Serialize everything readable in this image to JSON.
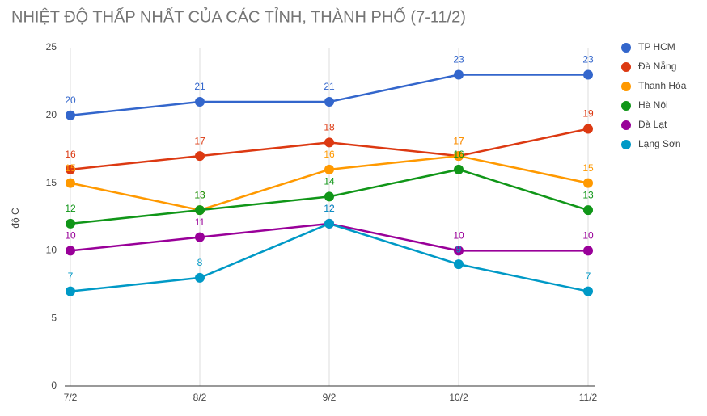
{
  "chart_data": {
    "type": "line",
    "title": "NHIỆT ĐỘ THẤP NHẤT CỦA CÁC TỈNH, THÀNH PHỐ (7-11/2)",
    "ylabel": "độ C",
    "categories": [
      "7/2",
      "8/2",
      "9/2",
      "10/2",
      "11/2"
    ],
    "series": [
      {
        "name": "TP HCM",
        "color": "#3366cc",
        "values": [
          20,
          21,
          21,
          23,
          23
        ]
      },
      {
        "name": "Đà Nẵng",
        "color": "#dc3912",
        "values": [
          16,
          17,
          18,
          17,
          19
        ]
      },
      {
        "name": "Thanh Hóa",
        "color": "#ff9900",
        "values": [
          15,
          13,
          16,
          17,
          15
        ]
      },
      {
        "name": "Hà Nội",
        "color": "#109618",
        "values": [
          12,
          13,
          14,
          16,
          13
        ]
      },
      {
        "name": "Đà Lạt",
        "color": "#990099",
        "values": [
          10,
          11,
          12,
          10,
          10
        ]
      },
      {
        "name": "Lạng Sơn",
        "color": "#0099c6",
        "values": [
          7,
          8,
          12,
          9,
          7
        ]
      }
    ],
    "ylim": [
      0,
      25
    ],
    "yticks": [
      0,
      5,
      10,
      15,
      20,
      25
    ],
    "grid": "x",
    "legend": "right",
    "data_labels": true
  }
}
